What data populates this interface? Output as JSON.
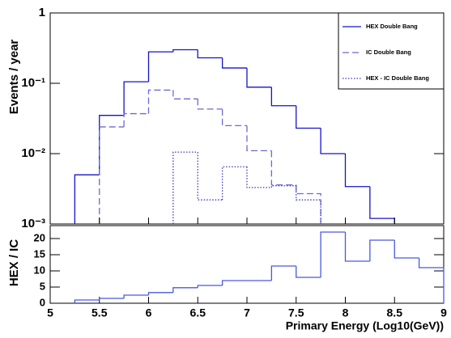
{
  "chart_data": [
    {
      "type": "histogram",
      "ylabel": "Events / year",
      "log_y": true,
      "bins": [
        5.25,
        5.5,
        5.75,
        6.0,
        6.25,
        6.5,
        6.75,
        7.0,
        7.25,
        7.5,
        7.75,
        8.0,
        8.25,
        8.5
      ],
      "series": [
        {
          "name": "HEX Double Bang",
          "color": "#1414c8",
          "dash": "solid",
          "values": [
            0.005,
            0.035,
            0.105,
            0.28,
            0.3,
            0.23,
            0.165,
            0.088,
            0.048,
            0.023,
            0.01,
            0.0034,
            0.0012
          ]
        },
        {
          "name": "IC Double Bang",
          "color": "#6a6ad2",
          "dash": "dashed",
          "values": [
            null,
            0.024,
            0.037,
            0.08,
            0.06,
            0.043,
            0.025,
            0.011,
            0.0036,
            0.0027,
            null,
            null,
            null
          ]
        },
        {
          "name": "HEX - IC Double Bang",
          "color": "#3a3ab4",
          "dash": "dotted",
          "values": [
            null,
            null,
            null,
            null,
            0.0105,
            0.0022,
            0.0065,
            0.0033,
            0.0035,
            0.0022,
            null,
            null,
            null
          ]
        }
      ],
      "xlim": [
        5,
        9
      ],
      "ylim": [
        0.001,
        1
      ],
      "yticks": [
        {
          "value": 0.001,
          "label": "10⁻³"
        },
        {
          "value": 0.01,
          "label": "10⁻²"
        },
        {
          "value": 0.1,
          "label": "10⁻¹"
        },
        1
      ],
      "legend": "upper right"
    },
    {
      "type": "histogram",
      "ylabel": "HEX / IC",
      "xlabel": "Primary Energy (Log10(GeV))",
      "bins": [
        5.25,
        5.5,
        5.75,
        6.0,
        6.25,
        6.5,
        6.75,
        7.0,
        7.25,
        7.5,
        7.75,
        8.0,
        8.25,
        8.5,
        8.75,
        9.0
      ],
      "series": [
        {
          "color": "#4a58e0",
          "dash": "solid",
          "values": [
            1,
            1.5,
            2.5,
            3.3,
            4.8,
            5.5,
            7,
            7,
            11.5,
            8,
            22,
            13,
            19.5,
            14,
            11
          ]
        }
      ],
      "xlim": [
        5,
        9
      ],
      "ylim": [
        0,
        24
      ],
      "xticks": [
        5,
        5.5,
        6,
        6.5,
        7,
        7.5,
        8,
        8.5,
        9
      ],
      "yticks": [
        0,
        5,
        10,
        15,
        20
      ]
    }
  ]
}
